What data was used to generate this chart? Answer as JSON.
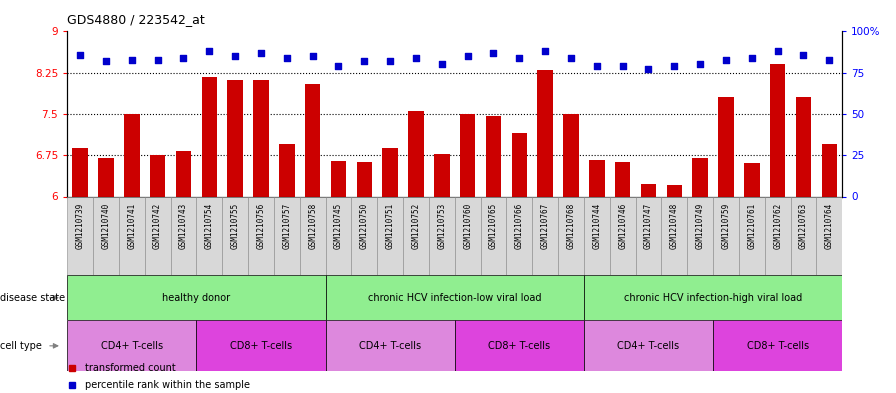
{
  "title": "GDS4880 / 223542_at",
  "samples": [
    "GSM1210739",
    "GSM1210740",
    "GSM1210741",
    "GSM1210742",
    "GSM1210743",
    "GSM1210754",
    "GSM1210755",
    "GSM1210756",
    "GSM1210757",
    "GSM1210758",
    "GSM1210745",
    "GSM1210750",
    "GSM1210751",
    "GSM1210752",
    "GSM1210753",
    "GSM1210760",
    "GSM1210765",
    "GSM1210766",
    "GSM1210767",
    "GSM1210768",
    "GSM1210744",
    "GSM1210746",
    "GSM1210747",
    "GSM1210748",
    "GSM1210749",
    "GSM1210759",
    "GSM1210761",
    "GSM1210762",
    "GSM1210763",
    "GSM1210764"
  ],
  "bar_values": [
    6.88,
    6.7,
    7.5,
    6.75,
    6.82,
    8.18,
    8.12,
    8.12,
    6.95,
    8.05,
    6.65,
    6.62,
    6.88,
    7.55,
    6.77,
    7.5,
    7.47,
    7.15,
    8.3,
    7.5,
    6.67,
    6.62,
    6.22,
    6.2,
    6.7,
    7.8,
    6.6,
    8.4,
    7.8,
    6.95
  ],
  "percentile_values": [
    86,
    82,
    83,
    83,
    84,
    88,
    85,
    87,
    84,
    85,
    79,
    82,
    82,
    84,
    80,
    85,
    87,
    84,
    88,
    84,
    79,
    79,
    77,
    79,
    80,
    83,
    84,
    88,
    86,
    83
  ],
  "ylim_left": [
    6,
    9
  ],
  "ylim_right": [
    0,
    100
  ],
  "yticks_left": [
    6,
    6.75,
    7.5,
    8.25,
    9
  ],
  "yticks_right": [
    0,
    25,
    50,
    75,
    100
  ],
  "ytick_labels_left": [
    "6",
    "6.75",
    "7.5",
    "8.25",
    "9"
  ],
  "ytick_labels_right": [
    "0",
    "25",
    "50",
    "75",
    "100%"
  ],
  "bar_color": "#cc0000",
  "scatter_color": "#0000cc",
  "bg_color": "#ffffff",
  "xtick_bg_color": "#d8d8d8",
  "disease_row_color": "#90ee90",
  "disease_groups": [
    {
      "label": "healthy donor",
      "start": 0,
      "end": 9
    },
    {
      "label": "chronic HCV infection-low viral load",
      "start": 10,
      "end": 19
    },
    {
      "label": "chronic HCV infection-high viral load",
      "start": 20,
      "end": 29
    }
  ],
  "cell_type_groups": [
    {
      "label": "CD4+ T-cells",
      "start": 0,
      "end": 4,
      "color": "#dd88dd"
    },
    {
      "label": "CD8+ T-cells",
      "start": 5,
      "end": 9,
      "color": "#dd44dd"
    },
    {
      "label": "CD4+ T-cells",
      "start": 10,
      "end": 14,
      "color": "#dd88dd"
    },
    {
      "label": "CD8+ T-cells",
      "start": 15,
      "end": 19,
      "color": "#dd44dd"
    },
    {
      "label": "CD4+ T-cells",
      "start": 20,
      "end": 24,
      "color": "#dd88dd"
    },
    {
      "label": "CD8+ T-cells",
      "start": 25,
      "end": 29,
      "color": "#dd44dd"
    }
  ],
  "disease_state_label": "disease state",
  "cell_type_label": "cell type",
  "legend_bar_label": "transformed count",
  "legend_dot_label": "percentile rank within the sample"
}
